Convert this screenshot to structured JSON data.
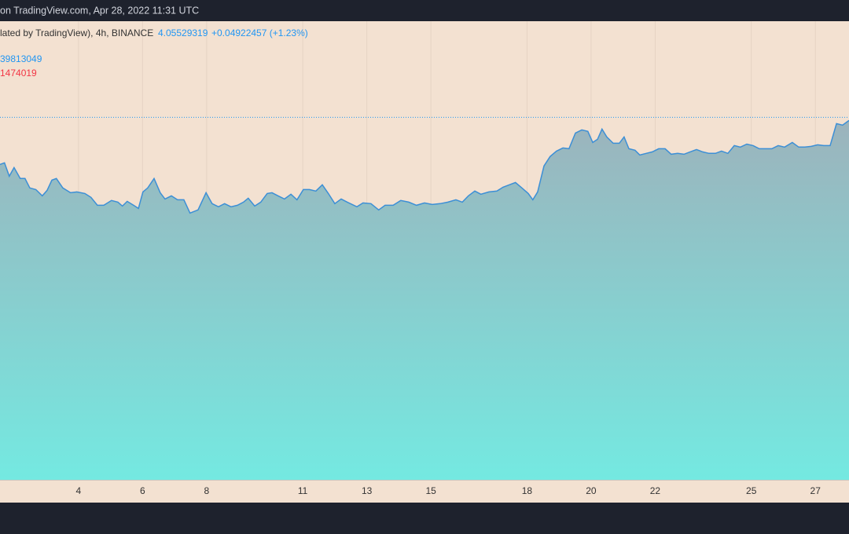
{
  "header": {
    "text": "on TradingView.com, Apr 28, 2022 11:31 UTC"
  },
  "chart_data": {
    "type": "area",
    "title": "lated by TradingView), 4h, BINANCE",
    "last_price": 4.05529319,
    "change": "+0.04922457 (+1.23%)",
    "indicators": [
      {
        "text": "39813049",
        "color": "#2196f3"
      },
      {
        "text": "1474019",
        "color": "#f23645"
      }
    ],
    "x": [
      1.55,
      1.69,
      1.84,
      1.99,
      2.18,
      2.33,
      2.48,
      2.67,
      2.87,
      3.02,
      3.17,
      3.31,
      3.51,
      3.75,
      3.95,
      4.2,
      4.39,
      4.59,
      4.79,
      5.03,
      5.23,
      5.37,
      5.52,
      5.72,
      5.87,
      6.01,
      6.16,
      6.36,
      6.55,
      6.7,
      6.9,
      7.09,
      7.29,
      7.48,
      7.73,
      7.98,
      8.17,
      8.37,
      8.56,
      8.76,
      8.96,
      9.15,
      9.3,
      9.5,
      9.69,
      9.89,
      10.04,
      10.23,
      10.43,
      10.63,
      10.82,
      11.02,
      11.21,
      11.41,
      11.61,
      11.8,
      12.0,
      12.2,
      12.39,
      12.69,
      12.88,
      13.13,
      13.37,
      13.57,
      13.82,
      14.06,
      14.31,
      14.55,
      14.8,
      15.04,
      15.29,
      15.53,
      15.78,
      15.98,
      16.17,
      16.37,
      16.56,
      16.81,
      17.06,
      17.25,
      17.45,
      17.64,
      17.84,
      18.04,
      18.18,
      18.33,
      18.53,
      18.72,
      18.92,
      19.12,
      19.31,
      19.51,
      19.71,
      19.9,
      20.05,
      20.2,
      20.34,
      20.49,
      20.69,
      20.88,
      21.03,
      21.18,
      21.37,
      21.52,
      21.72,
      21.91,
      22.11,
      22.31,
      22.5,
      22.7,
      22.9,
      23.09,
      23.29,
      23.48,
      23.68,
      23.88,
      24.07,
      24.27,
      24.47,
      24.66,
      24.86,
      25.06,
      25.25,
      25.45,
      25.64,
      25.84,
      26.04,
      26.28,
      26.48,
      26.67,
      26.87,
      27.07,
      27.26,
      27.46,
      27.66,
      27.85,
      28.05
    ],
    "series": [
      {
        "color": "#3c8fd6",
        "values": [
          3.68,
          3.693,
          3.586,
          3.655,
          3.568,
          3.568,
          3.493,
          3.48,
          3.43,
          3.474,
          3.555,
          3.568,
          3.493,
          3.455,
          3.461,
          3.449,
          3.418,
          3.355,
          3.355,
          3.393,
          3.38,
          3.349,
          3.386,
          3.355,
          3.33,
          3.461,
          3.493,
          3.568,
          3.455,
          3.405,
          3.43,
          3.399,
          3.399,
          3.293,
          3.318,
          3.455,
          3.368,
          3.343,
          3.368,
          3.343,
          3.355,
          3.38,
          3.411,
          3.349,
          3.38,
          3.449,
          3.455,
          3.43,
          3.405,
          3.443,
          3.399,
          3.48,
          3.48,
          3.468,
          3.518,
          3.449,
          3.368,
          3.405,
          3.38,
          3.343,
          3.374,
          3.368,
          3.318,
          3.355,
          3.355,
          3.393,
          3.38,
          3.355,
          3.374,
          3.361,
          3.368,
          3.38,
          3.399,
          3.38,
          3.43,
          3.468,
          3.443,
          3.461,
          3.468,
          3.499,
          3.518,
          3.536,
          3.493,
          3.449,
          3.399,
          3.461,
          3.668,
          3.743,
          3.786,
          3.811,
          3.805,
          3.93,
          3.955,
          3.943,
          3.855,
          3.88,
          3.961,
          3.899,
          3.849,
          3.849,
          3.899,
          3.805,
          3.793,
          3.755,
          3.768,
          3.78,
          3.805,
          3.805,
          3.761,
          3.768,
          3.761,
          3.78,
          3.799,
          3.78,
          3.768,
          3.768,
          3.786,
          3.768,
          3.83,
          3.818,
          3.842,
          3.83,
          3.805,
          3.805,
          3.805,
          3.83,
          3.818,
          3.855,
          3.818,
          3.818,
          3.824,
          3.836,
          3.83,
          3.83,
          4.005,
          3.993,
          4.03
        ]
      }
    ],
    "xlim": [
      1.55,
      28.05
    ],
    "ylim": [
      1.17,
      4.82
    ],
    "xticks": [
      4,
      6,
      8,
      11,
      13,
      15,
      18,
      20,
      22,
      25,
      27
    ],
    "grid": true
  }
}
